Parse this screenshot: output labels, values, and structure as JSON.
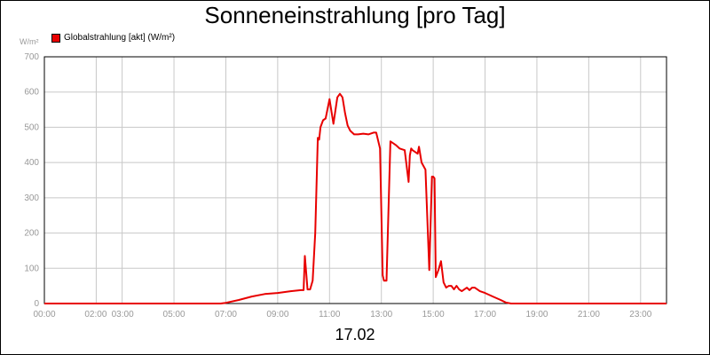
{
  "chart_data": {
    "type": "line",
    "title": "Sonneneinstrahlung [pro Tag]",
    "ylabel": "W/m²",
    "date_label": "17.02",
    "xlim": [
      0,
      24
    ],
    "ylim": [
      0,
      700
    ],
    "grid": true,
    "legend_position": "top-left",
    "x_ticks": [
      "00:00",
      "02:00",
      "03:00",
      "05:00",
      "07:00",
      "09:00",
      "11:00",
      "13:00",
      "15:00",
      "17:00",
      "19:00",
      "21:00",
      "23:00"
    ],
    "y_ticks": [
      "0",
      "100",
      "200",
      "300",
      "400",
      "500",
      "600",
      "700"
    ],
    "series": [
      {
        "name": "Globalstrahlung [akt] (W/m²)",
        "color": "#e80000",
        "x": [
          0,
          6.8,
          7.0,
          7.5,
          8.0,
          8.5,
          9.0,
          9.5,
          9.9,
          10.0,
          10.05,
          10.15,
          10.25,
          10.35,
          10.45,
          10.55,
          10.6,
          10.65,
          10.75,
          10.85,
          11.0,
          11.15,
          11.3,
          11.4,
          11.5,
          11.6,
          11.7,
          11.8,
          11.95,
          12.1,
          12.3,
          12.5,
          12.7,
          12.8,
          12.95,
          13.05,
          13.1,
          13.2,
          13.35,
          13.45,
          13.55,
          13.7,
          13.9,
          14.05,
          14.1,
          14.15,
          14.2,
          14.4,
          14.45,
          14.55,
          14.7,
          14.85,
          14.95,
          15.0,
          15.05,
          15.1,
          15.2,
          15.3,
          15.4,
          15.5,
          15.6,
          15.7,
          15.8,
          15.9,
          16.0,
          16.1,
          16.2,
          16.3,
          16.4,
          16.5,
          16.6,
          16.7,
          16.8,
          17.0,
          17.3,
          17.6,
          17.8,
          18.0,
          24.0
        ],
        "values": [
          0,
          0,
          2,
          10,
          20,
          27,
          30,
          35,
          38,
          38,
          135,
          40,
          40,
          65,
          200,
          470,
          465,
          500,
          520,
          525,
          580,
          510,
          585,
          595,
          585,
          540,
          505,
          490,
          480,
          480,
          482,
          480,
          485,
          485,
          440,
          80,
          65,
          65,
          460,
          455,
          450,
          440,
          435,
          345,
          420,
          440,
          435,
          425,
          445,
          400,
          380,
          95,
          360,
          360,
          355,
          75,
          95,
          120,
          60,
          45,
          50,
          50,
          40,
          50,
          40,
          35,
          40,
          45,
          38,
          45,
          45,
          40,
          35,
          30,
          20,
          10,
          3,
          0,
          0
        ]
      }
    ]
  }
}
